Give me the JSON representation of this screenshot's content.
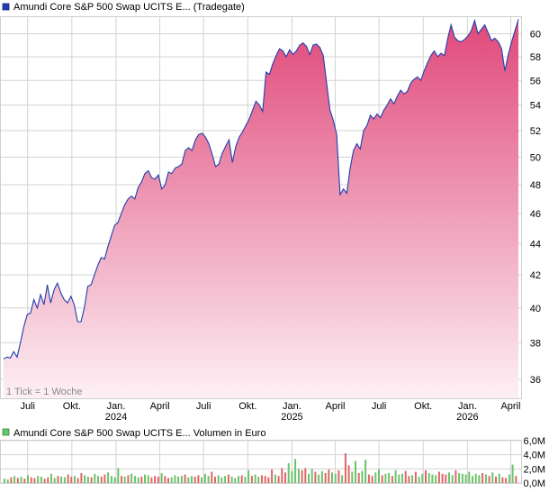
{
  "chart_data": [
    {
      "type": "area",
      "title": "Amundi Core S&P 500 Swap UCITS E... (Tradegate)",
      "legend_position": "top-left",
      "colors": {
        "line": "#1f3fae",
        "fill_top": "#e0487a",
        "fill_bottom": "#fdf0f4",
        "grid": "#d3d3d3",
        "legend_marker": "#1f3fae"
      },
      "grid": true,
      "y_scale": "log",
      "ylim": [
        35,
        61.5
      ],
      "yticks": [
        36,
        38,
        40,
        42,
        44,
        46,
        48,
        50,
        52,
        54,
        56,
        58,
        60
      ],
      "xlim": [
        "2023-05-12",
        "2026-04-17"
      ],
      "xticks": [
        {
          "date": "2023-07-01",
          "label": "Juli",
          "year": ""
        },
        {
          "date": "2023-10-01",
          "label": "Okt.",
          "year": ""
        },
        {
          "date": "2024-01-01",
          "label": "Jan.",
          "year": "2024"
        },
        {
          "date": "2024-04-01",
          "label": "April",
          "year": ""
        },
        {
          "date": "2024-07-01",
          "label": "Juli",
          "year": ""
        },
        {
          "date": "2024-10-01",
          "label": "Okt.",
          "year": ""
        },
        {
          "date": "2025-01-01",
          "label": "Jan.",
          "year": "2025"
        },
        {
          "date": "2025-04-01",
          "label": "April",
          "year": ""
        },
        {
          "date": "2025-07-01",
          "label": "Juli",
          "year": ""
        },
        {
          "date": "2025-10-01",
          "label": "Okt.",
          "year": ""
        },
        {
          "date": "2026-01-01",
          "label": "Jan.",
          "year": "2026"
        },
        {
          "date": "2026-04-01",
          "label": "April",
          "year": ""
        }
      ],
      "note": "1 Tick = 1 Woche",
      "series": [
        {
          "name": "Amundi Core S&P 500 Swap UCITS E... (Tradegate)",
          "points": [
            [
              "2023-05-12",
              37.1
            ],
            [
              "2023-05-19",
              37.2
            ],
            [
              "2023-05-26",
              37.15
            ],
            [
              "2023-06-02",
              37.5
            ],
            [
              "2023-06-09",
              37.2
            ],
            [
              "2023-06-16",
              38.0
            ],
            [
              "2023-06-23",
              38.9
            ],
            [
              "2023-06-30",
              39.6
            ],
            [
              "2023-07-07",
              39.7
            ],
            [
              "2023-07-14",
              40.5
            ],
            [
              "2023-07-21",
              40.0
            ],
            [
              "2023-07-28",
              40.8
            ],
            [
              "2023-08-04",
              40.2
            ],
            [
              "2023-08-11",
              41.4
            ],
            [
              "2023-08-18",
              40.3
            ],
            [
              "2023-08-25",
              41.1
            ],
            [
              "2023-09-01",
              41.5
            ],
            [
              "2023-09-08",
              40.9
            ],
            [
              "2023-09-15",
              40.5
            ],
            [
              "2023-09-22",
              40.3
            ],
            [
              "2023-09-29",
              40.7
            ],
            [
              "2023-10-06",
              40.2
            ],
            [
              "2023-10-13",
              39.2
            ],
            [
              "2023-10-20",
              39.2
            ],
            [
              "2023-10-27",
              40.0
            ],
            [
              "2023-11-03",
              41.3
            ],
            [
              "2023-11-10",
              41.4
            ],
            [
              "2023-11-17",
              42.0
            ],
            [
              "2023-11-24",
              42.6
            ],
            [
              "2023-12-01",
              43.1
            ],
            [
              "2023-12-08",
              43.0
            ],
            [
              "2023-12-15",
              43.8
            ],
            [
              "2023-12-22",
              44.5
            ],
            [
              "2023-12-29",
              45.2
            ],
            [
              "2024-01-05",
              45.4
            ],
            [
              "2024-01-12",
              46.0
            ],
            [
              "2024-01-19",
              46.6
            ],
            [
              "2024-01-26",
              47.0
            ],
            [
              "2024-02-02",
              47.2
            ],
            [
              "2024-02-09",
              47.0
            ],
            [
              "2024-02-16",
              47.8
            ],
            [
              "2024-02-23",
              48.2
            ],
            [
              "2024-03-01",
              48.8
            ],
            [
              "2024-03-08",
              49.0
            ],
            [
              "2024-03-15",
              48.5
            ],
            [
              "2024-03-22",
              48.4
            ],
            [
              "2024-03-29",
              48.7
            ],
            [
              "2024-04-05",
              47.7
            ],
            [
              "2024-04-12",
              48.0
            ],
            [
              "2024-04-19",
              48.9
            ],
            [
              "2024-04-26",
              48.8
            ],
            [
              "2024-05-03",
              49.2
            ],
            [
              "2024-05-10",
              49.3
            ],
            [
              "2024-05-17",
              49.5
            ],
            [
              "2024-05-24",
              50.5
            ],
            [
              "2024-05-31",
              50.7
            ],
            [
              "2024-06-07",
              50.5
            ],
            [
              "2024-06-14",
              51.3
            ],
            [
              "2024-06-21",
              51.7
            ],
            [
              "2024-06-28",
              51.8
            ],
            [
              "2024-07-05",
              51.5
            ],
            [
              "2024-07-12",
              51.0
            ],
            [
              "2024-07-19",
              50.2
            ],
            [
              "2024-07-26",
              49.3
            ],
            [
              "2024-08-02",
              49.5
            ],
            [
              "2024-08-09",
              50.3
            ],
            [
              "2024-08-16",
              50.8
            ],
            [
              "2024-08-23",
              51.3
            ],
            [
              "2024-08-30",
              49.6
            ],
            [
              "2024-09-06",
              50.8
            ],
            [
              "2024-09-13",
              51.5
            ],
            [
              "2024-09-20",
              51.9
            ],
            [
              "2024-09-27",
              52.4
            ],
            [
              "2024-10-04",
              52.9
            ],
            [
              "2024-10-11",
              53.6
            ],
            [
              "2024-10-18",
              54.3
            ],
            [
              "2024-10-25",
              54.0
            ],
            [
              "2024-11-01",
              53.5
            ],
            [
              "2024-11-08",
              56.7
            ],
            [
              "2024-11-15",
              56.5
            ],
            [
              "2024-11-22",
              57.4
            ],
            [
              "2024-11-29",
              58.1
            ],
            [
              "2024-12-06",
              58.7
            ],
            [
              "2024-12-13",
              58.5
            ],
            [
              "2024-12-20",
              58.0
            ],
            [
              "2024-12-27",
              58.6
            ],
            [
              "2025-01-03",
              58.2
            ],
            [
              "2025-01-10",
              58.5
            ],
            [
              "2025-01-17",
              59.0
            ],
            [
              "2025-01-24",
              59.2
            ],
            [
              "2025-01-31",
              58.9
            ],
            [
              "2025-02-07",
              58.2
            ],
            [
              "2025-02-14",
              59.0
            ],
            [
              "2025-02-21",
              59.1
            ],
            [
              "2025-02-28",
              58.8
            ],
            [
              "2025-03-07",
              58.1
            ],
            [
              "2025-03-14",
              55.8
            ],
            [
              "2025-03-21",
              53.6
            ],
            [
              "2025-03-28",
              52.8
            ],
            [
              "2025-04-04",
              51.7
            ],
            [
              "2025-04-11",
              47.3
            ],
            [
              "2025-04-18",
              47.7
            ],
            [
              "2025-04-25",
              47.4
            ],
            [
              "2025-05-02",
              49.2
            ],
            [
              "2025-05-09",
              50.5
            ],
            [
              "2025-05-16",
              51.0
            ],
            [
              "2025-05-23",
              50.6
            ],
            [
              "2025-05-30",
              52.0
            ],
            [
              "2025-06-06",
              52.4
            ],
            [
              "2025-06-13",
              53.2
            ],
            [
              "2025-06-20",
              52.9
            ],
            [
              "2025-06-27",
              53.3
            ],
            [
              "2025-07-04",
              53.0
            ],
            [
              "2025-07-11",
              53.6
            ],
            [
              "2025-07-18",
              54.0
            ],
            [
              "2025-07-25",
              54.5
            ],
            [
              "2025-08-01",
              54.1
            ],
            [
              "2025-08-08",
              54.7
            ],
            [
              "2025-08-15",
              55.2
            ],
            [
              "2025-08-22",
              54.9
            ],
            [
              "2025-08-29",
              55.1
            ],
            [
              "2025-09-05",
              55.8
            ],
            [
              "2025-09-12",
              56.1
            ],
            [
              "2025-09-19",
              56.3
            ],
            [
              "2025-09-26",
              56.0
            ],
            [
              "2025-10-03",
              56.8
            ],
            [
              "2025-10-10",
              57.5
            ],
            [
              "2025-10-17",
              58.1
            ],
            [
              "2025-10-24",
              58.5
            ],
            [
              "2025-10-31",
              58.0
            ],
            [
              "2025-11-07",
              58.3
            ],
            [
              "2025-11-14",
              58.1
            ],
            [
              "2025-11-21",
              59.6
            ],
            [
              "2025-11-28",
              60.8
            ],
            [
              "2025-12-05",
              59.7
            ],
            [
              "2025-12-12",
              59.4
            ],
            [
              "2025-12-19",
              59.3
            ],
            [
              "2025-12-26",
              59.5
            ],
            [
              "2026-01-02",
              59.8
            ],
            [
              "2026-01-09",
              60.3
            ],
            [
              "2026-01-16",
              61.2
            ],
            [
              "2026-01-23",
              60.0
            ],
            [
              "2026-01-30",
              60.4
            ],
            [
              "2026-02-06",
              60.8
            ],
            [
              "2026-02-13",
              60.1
            ],
            [
              "2026-02-20",
              59.4
            ],
            [
              "2026-02-27",
              59.6
            ],
            [
              "2026-03-06",
              59.3
            ],
            [
              "2026-03-13",
              58.7
            ],
            [
              "2026-03-20",
              56.8
            ],
            [
              "2026-03-27",
              58.2
            ],
            [
              "2026-04-03",
              59.3
            ],
            [
              "2026-04-10",
              60.3
            ],
            [
              "2026-04-17",
              61.3
            ]
          ]
        }
      ]
    },
    {
      "type": "bar",
      "title": "Amundi Core S&P 500 Swap UCITS E... Volumen in Euro",
      "legend_position": "top-left",
      "colors": {
        "up": "#6cc36c",
        "down": "#e06666",
        "grid": "#d3d3d3",
        "legend_marker": "#6cc36c"
      },
      "grid": true,
      "ylim": [
        0,
        6
      ],
      "yticks": [
        {
          "value": 0,
          "label": "0,0M"
        },
        {
          "value": 2,
          "label": "2,0M"
        },
        {
          "value": 4,
          "label": "4,0M"
        },
        {
          "value": 6,
          "label": "6,0M"
        }
      ],
      "ylabel": "",
      "values_unit": "Mio. Euro pro Woche",
      "series": [
        {
          "name": "Volumen",
          "values": [
            0.6,
            0.5,
            0.8,
            1.0,
            0.7,
            0.9,
            0.6,
            1.1,
            0.8,
            0.7,
            1.0,
            0.9,
            0.6,
            0.8,
            1.3,
            0.7,
            1.0,
            0.9,
            0.8,
            1.2,
            0.9,
            1.0,
            0.7,
            1.4,
            1.1,
            0.9,
            0.8,
            1.3,
            1.0,
            0.9,
            1.2,
            1.5,
            1.0,
            0.8,
            2.1,
            1.0,
            0.9,
            1.1,
            1.3,
            1.0,
            0.8,
            0.9,
            1.2,
            1.1,
            0.8,
            1.0,
            0.9,
            1.4,
            1.0,
            0.7,
            0.8,
            1.1,
            0.9,
            1.0,
            1.2,
            0.8,
            1.0,
            0.9,
            1.1,
            0.8,
            1.3,
            1.0,
            1.6,
            0.9,
            1.1,
            0.8,
            1.0,
            1.2,
            0.9,
            0.7,
            1.0,
            1.1,
            0.9,
            1.8,
            1.0,
            1.2,
            0.9,
            1.1,
            1.0,
            0.8,
            1.9,
            1.2,
            1.0,
            2.1,
            1.5,
            2.8,
            1.7,
            3.4,
            2.0,
            1.8,
            2.1,
            1.3,
            2.0,
            1.6,
            1.2,
            1.7,
            1.4,
            1.9,
            1.5,
            1.3,
            1.8,
            1.1,
            4.2,
            2.5,
            1.6,
            3.1,
            1.4,
            1.7,
            3.3,
            1.2,
            1.0,
            1.5,
            1.9,
            1.1,
            1.3,
            1.4,
            1.0,
            1.8,
            1.2,
            1.3,
            1.7,
            1.0,
            1.1,
            1.6,
            0.9,
            1.3,
            1.8,
            1.4,
            1.2,
            1.1,
            1.6,
            1.3,
            1.2,
            1.5,
            1.1,
            1.8,
            1.4,
            1.3,
            1.2,
            1.6,
            1.0,
            1.3,
            1.1,
            1.4,
            1.2,
            1.0,
            1.5,
            0.9,
            1.3,
            0.8,
            0.7,
            1.2,
            2.6,
            1.0
          ],
          "direction": "uu dudududduudduuduuddudduuduudduuuududuuuduudddudduuuuduudduuudduuuduuuduudu udddduddduuuudduuduudduududduuduudduuduuduuudduduuduuuddduuduuuuu"
        }
      ]
    }
  ]
}
